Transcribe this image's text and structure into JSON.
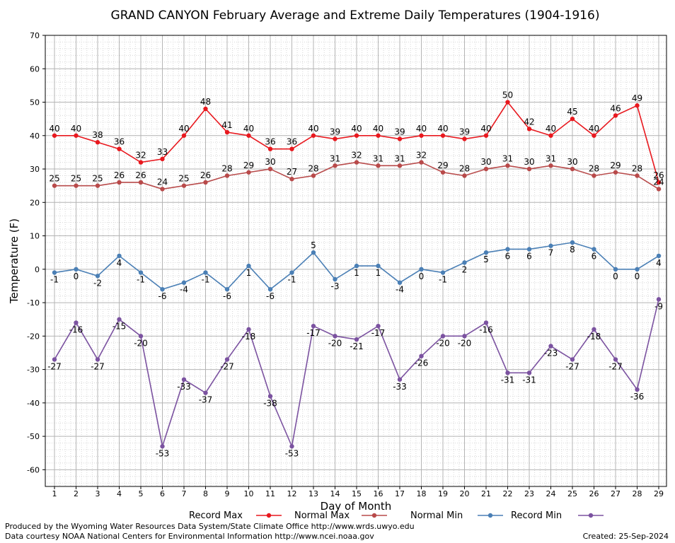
{
  "chart_data": {
    "type": "line",
    "title": "GRAND CANYON February Average and Extreme Daily Temperatures (1904-1916)",
    "xlabel": "Day of Month",
    "ylabel": "Temperature (F)",
    "ylim": [
      -65,
      70
    ],
    "yticks": [
      70,
      60,
      50,
      40,
      30,
      20,
      10,
      0,
      -10,
      -20,
      -30,
      -40,
      -50,
      -60
    ],
    "grid": true,
    "legend_placement": "bottom",
    "categories": [
      1,
      2,
      3,
      4,
      5,
      6,
      7,
      8,
      9,
      10,
      11,
      12,
      13,
      14,
      15,
      16,
      17,
      18,
      19,
      20,
      21,
      22,
      23,
      24,
      25,
      26,
      27,
      28,
      29
    ],
    "series": [
      {
        "name": "Record Max",
        "color": "#e8181e",
        "label_pos": "above",
        "values": [
          40,
          40,
          38,
          36,
          32,
          33,
          40,
          48,
          41,
          40,
          36,
          36,
          40,
          39,
          40,
          40,
          39,
          40,
          40,
          39,
          40,
          50,
          42,
          40,
          45,
          40,
          46,
          49,
          26
        ]
      },
      {
        "name": "Normal Max",
        "color": "#b84a4a",
        "label_pos": "above",
        "values": [
          25,
          25,
          25,
          26,
          26,
          24,
          25,
          26,
          28,
          29,
          30,
          27,
          28,
          31,
          32,
          31,
          31,
          32,
          29,
          28,
          30,
          31,
          30,
          31,
          30,
          28,
          29,
          28,
          24
        ]
      },
      {
        "name": "Normal Min",
        "color": "#4a7fb5",
        "label_pos": "mixed",
        "values": [
          -1,
          0,
          -2,
          4,
          -1,
          -6,
          -4,
          -1,
          -6,
          1,
          -6,
          -1,
          5,
          -3,
          1,
          1,
          -4,
          0,
          -1,
          2,
          5,
          6,
          6,
          7,
          8,
          6,
          0,
          0,
          4
        ],
        "label_above": [
          false,
          false,
          false,
          false,
          false,
          false,
          false,
          false,
          false,
          false,
          false,
          false,
          true,
          false,
          false,
          false,
          false,
          false,
          false,
          false,
          false,
          false,
          false,
          false,
          false,
          false,
          false,
          false,
          false
        ]
      },
      {
        "name": "Record Min",
        "color": "#7b52a0",
        "label_pos": "below",
        "values": [
          -27,
          -16,
          -27,
          -15,
          -20,
          -53,
          -33,
          -37,
          -27,
          -18,
          -38,
          -53,
          -17,
          -20,
          -21,
          -17,
          -33,
          -26,
          -20,
          -20,
          -16,
          -31,
          -31,
          -23,
          -27,
          -18,
          -27,
          -36,
          -9
        ]
      }
    ]
  },
  "footer": {
    "line1": "Produced by the Wyoming Water Resources Data System/State Climate Office http://www.wrds.uwyo.edu",
    "line2": "Data courtesy NOAA National Centers for Environmental Information http://www.ncei.noaa.gov",
    "created": "Created:  25-Sep-2024"
  }
}
